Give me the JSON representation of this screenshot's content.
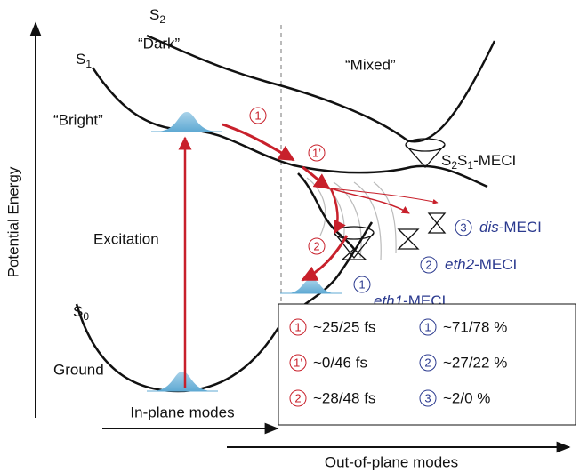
{
  "axes": {
    "y_label": "Potential Energy",
    "x_label_1": "In-plane modes",
    "x_label_2": "Out-of-plane modes"
  },
  "states": [
    {
      "symbol": "S",
      "sub": "2",
      "label": "“Dark”"
    },
    {
      "symbol": "S",
      "sub": "1",
      "label": "“Bright”"
    },
    {
      "symbol": "S",
      "sub": "0",
      "label": "Ground"
    }
  ],
  "region": "“Mixed”",
  "excitation": "Excitation",
  "pathways": [
    {
      "marker": "1"
    },
    {
      "marker": "1’"
    },
    {
      "marker": "2"
    }
  ],
  "s2s1_meci": {
    "a": "S",
    "a_sub": "2",
    "b": "S",
    "b_sub": "1",
    "suffix": "-MECI"
  },
  "meci": [
    {
      "marker": "3",
      "name": "dis",
      "suffix": "-MECI"
    },
    {
      "marker": "2",
      "name": "eth2",
      "suffix": "-MECI"
    },
    {
      "marker": "1",
      "name": "eth1",
      "suffix": "-MECI"
    }
  ],
  "legend": {
    "rows": [
      {
        "left_marker": "1",
        "left_text": "~25/25 fs",
        "right_marker": "1",
        "right_text": "~71/78 %"
      },
      {
        "left_marker": "1’",
        "left_text": "~0/46 fs",
        "right_marker": "2",
        "right_text": "~27/22 %"
      },
      {
        "left_marker": "2",
        "left_text": "~28/48 fs",
        "right_marker": "3",
        "right_text": "~2/0 %"
      }
    ]
  }
}
